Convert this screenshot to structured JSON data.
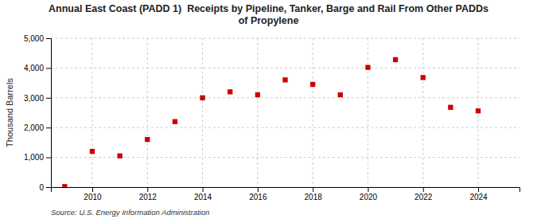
{
  "chart_data": {
    "type": "scatter",
    "title": "Annual East Coast (PADD 1)  Receipts by Pipeline, Tanker, Barge and Rail From Other PADDs\nof Propylene",
    "y_label": "Thousand Barrels",
    "annotations": [
      "Source: U.S. Energy Information Administration"
    ],
    "x": [
      2009,
      2010,
      2011,
      2012,
      2013,
      2014,
      2015,
      2016,
      2017,
      2018,
      2019,
      2020,
      2021,
      2022,
      2023,
      2024
    ],
    "values": [
      20,
      1200,
      1050,
      1600,
      2200,
      3000,
      3200,
      3100,
      3600,
      3450,
      3100,
      4020,
      4280,
      3680,
      2680,
      2560
    ],
    "color": "#cc0000",
    "marker": "square",
    "xlim": [
      2008.5,
      2025.5
    ],
    "xticks": [
      2010,
      2012,
      2014,
      2016,
      2018,
      2020,
      2022,
      2024
    ],
    "ylim": [
      0,
      5000
    ],
    "yticks": [
      0,
      {
        "value": 1000,
        "label": "1,000"
      },
      {
        "value": 2000,
        "label": "2,000"
      },
      {
        "value": 3000,
        "label": "3,000"
      },
      {
        "value": 4000,
        "label": "4,000"
      },
      {
        "value": 5000,
        "label": "5,000"
      }
    ],
    "grid": true
  }
}
